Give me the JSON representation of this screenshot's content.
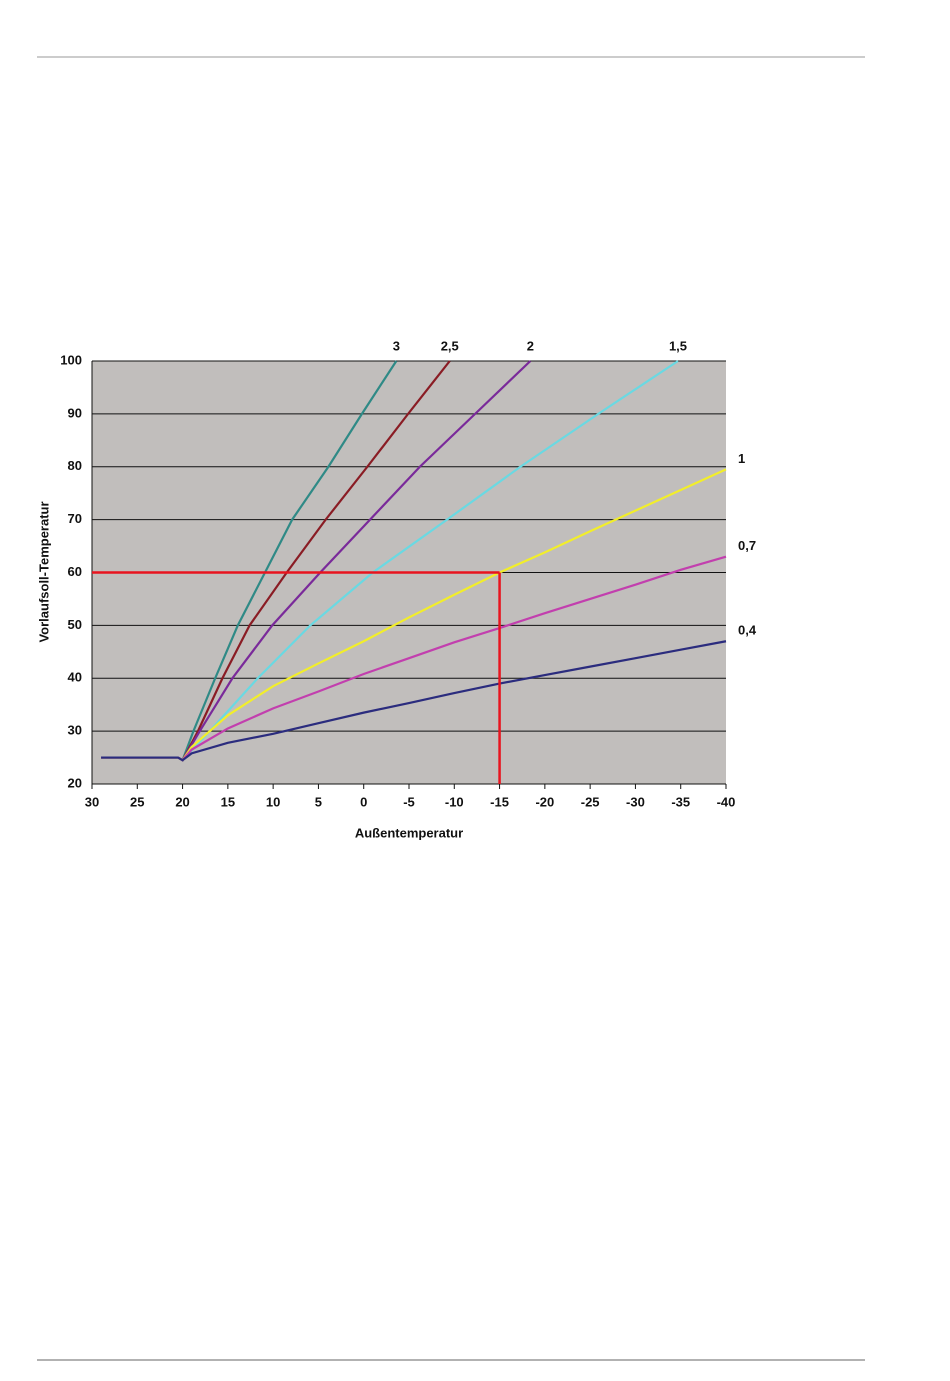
{
  "chart_data": {
    "type": "line",
    "x_label": "Außentemperatur",
    "y_label": "Vorlaufsoll-Temperatur",
    "xlim": [
      30,
      -40
    ],
    "xticks": [
      30,
      25,
      20,
      15,
      10,
      5,
      0,
      -5,
      -10,
      -15,
      -20,
      -25,
      -30,
      -35,
      -40
    ],
    "ylim": [
      20,
      100
    ],
    "yticks": [
      20,
      30,
      40,
      50,
      60,
      70,
      80,
      90,
      100
    ],
    "grid": true,
    "reference": {
      "x": -15,
      "y": 60,
      "color": "#e8141e"
    },
    "series": [
      {
        "name": "3",
        "color": "#2f8a86",
        "x": [
          29,
          20.5,
          20,
          18.8,
          16.4,
          13.9,
          10.9,
          7.9,
          3.9,
          0.2,
          -3.6
        ],
        "values": [
          25,
          25,
          24.5,
          30,
          40,
          50,
          60,
          70,
          80,
          90,
          100
        ]
      },
      {
        "name": "2,5",
        "color": "#8a1c24",
        "x": [
          29,
          20.5,
          20,
          18.3,
          15.6,
          12.6,
          8.5,
          4.2,
          -0.4,
          -4.9,
          -9.5
        ],
        "values": [
          25,
          25,
          24.5,
          30,
          40,
          50,
          60,
          70,
          80,
          90,
          100
        ]
      },
      {
        "name": "2",
        "color": "#7a2a9a",
        "x": [
          29,
          20.5,
          20,
          18.1,
          14.5,
          10.1,
          4.8,
          -0.7,
          -6.2,
          -12.3,
          -18.4
        ],
        "values": [
          25,
          25,
          24.5,
          30,
          40,
          50,
          60,
          70,
          80,
          90,
          100
        ]
      },
      {
        "name": "1,5",
        "color": "#6ad9e2",
        "x": [
          29,
          20.5,
          20,
          17,
          11.7,
          5.9,
          -1,
          -9.2,
          -17.3,
          -25.9,
          -34.7
        ],
        "values": [
          25,
          25,
          24.5,
          30,
          40,
          50,
          60,
          70,
          80,
          90,
          100
        ]
      },
      {
        "name": "1",
        "color": "#f2ee2a",
        "x": [
          29,
          20.5,
          20,
          19,
          15,
          10,
          5,
          0,
          -5,
          -10,
          -15,
          -20,
          -25,
          -30,
          -35,
          -40
        ],
        "values": [
          25,
          25,
          24.5,
          27,
          33,
          38.5,
          42.8,
          47,
          51.5,
          55.8,
          60,
          63.8,
          67.8,
          71.7,
          75.6,
          79.5
        ]
      },
      {
        "name": "0,7",
        "color": "#c23fae",
        "x": [
          29,
          20.5,
          20,
          19,
          15,
          10,
          5,
          0,
          -5,
          -10,
          -15,
          -20,
          -25,
          -30,
          -35,
          -40
        ],
        "values": [
          25,
          25,
          24.5,
          26.5,
          30.5,
          34.3,
          37.5,
          40.8,
          43.8,
          46.8,
          49.5,
          52.3,
          55,
          57.7,
          60.5,
          63
        ]
      },
      {
        "name": "0,4",
        "color": "#2b2c7e",
        "x": [
          29,
          20.5,
          20,
          19,
          15,
          10,
          5,
          0,
          -5,
          -10,
          -15,
          -20,
          -25,
          -30,
          -35,
          -40
        ],
        "values": [
          25,
          25,
          24.5,
          25.8,
          27.8,
          29.5,
          31.5,
          33.5,
          35.3,
          37.2,
          39,
          40.6,
          42.2,
          43.8,
          45.4,
          47
        ]
      }
    ]
  }
}
